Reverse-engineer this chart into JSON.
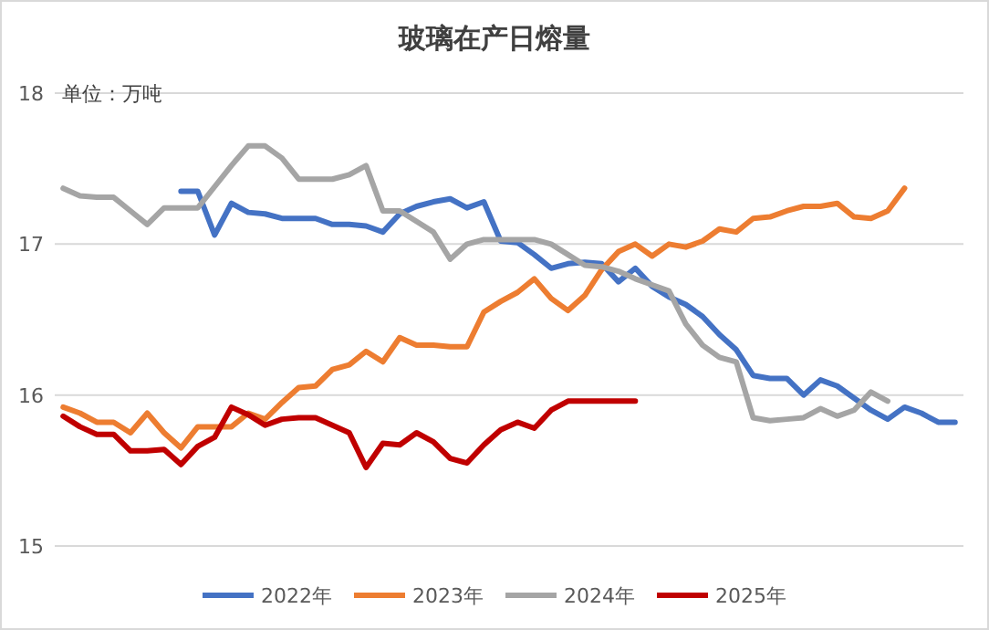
{
  "chart_data": {
    "type": "line",
    "title": "玻璃在产日熔量",
    "annotations": [
      "单位：万吨"
    ],
    "categories": [
      null,
      null,
      null,
      null,
      null,
      null,
      null,
      null,
      null,
      null,
      null,
      null,
      null,
      null,
      null,
      null,
      null,
      null,
      null,
      null,
      null,
      null,
      null,
      null,
      null,
      null,
      null,
      null,
      null,
      null,
      null,
      null,
      null,
      null,
      null,
      null,
      null,
      null,
      null,
      null,
      null,
      null,
      null,
      null,
      null,
      null,
      null,
      null,
      null,
      null,
      null,
      null,
      null,
      null
    ],
    "ylim": [
      15,
      18
    ],
    "yticks": [
      15,
      16,
      17,
      18
    ],
    "grid": "y",
    "legend": "bottom",
    "series": [
      {
        "name": "2022年",
        "color": "#4472c4",
        "values": [
          null,
          null,
          null,
          null,
          null,
          null,
          null,
          17.35,
          17.35,
          17.06,
          17.27,
          17.21,
          17.2,
          17.17,
          17.17,
          17.17,
          17.13,
          17.13,
          17.12,
          17.08,
          17.2,
          17.25,
          17.28,
          17.3,
          17.24,
          17.28,
          17.02,
          17.01,
          16.93,
          16.84,
          16.87,
          16.88,
          16.87,
          16.75,
          16.84,
          16.72,
          16.65,
          16.6,
          16.52,
          16.4,
          16.3,
          16.13,
          16.11,
          16.11,
          16.0,
          16.1,
          16.06,
          15.98,
          15.9,
          15.84,
          15.92,
          15.88,
          15.82,
          15.82
        ]
      },
      {
        "name": "2023年",
        "color": "#ed7d31",
        "values": [
          15.92,
          15.88,
          15.82,
          15.82,
          15.75,
          15.88,
          15.75,
          15.65,
          15.79,
          15.79,
          15.79,
          15.88,
          15.84,
          15.95,
          16.05,
          16.06,
          16.17,
          16.2,
          16.29,
          16.22,
          16.38,
          16.33,
          16.33,
          16.32,
          16.32,
          16.55,
          16.62,
          16.68,
          16.77,
          16.64,
          16.56,
          16.66,
          16.83,
          16.95,
          17.0,
          16.92,
          17.0,
          16.98,
          17.02,
          17.1,
          17.08,
          17.17,
          17.18,
          17.22,
          17.25,
          17.25,
          17.27,
          17.18,
          17.17,
          17.22,
          17.37,
          null,
          null,
          null
        ]
      },
      {
        "name": "2024年",
        "color": "#a5a5a5",
        "values": [
          17.37,
          17.32,
          17.31,
          17.31,
          17.22,
          17.13,
          17.24,
          17.24,
          17.24,
          17.38,
          17.52,
          17.65,
          17.65,
          17.57,
          17.43,
          17.43,
          17.43,
          17.46,
          17.52,
          17.22,
          17.22,
          17.15,
          17.08,
          16.9,
          17.0,
          17.03,
          17.03,
          17.03,
          17.03,
          17.0,
          16.93,
          16.86,
          16.85,
          16.82,
          16.77,
          16.73,
          16.69,
          16.47,
          16.33,
          16.25,
          16.22,
          15.85,
          15.83,
          15.84,
          15.85,
          15.91,
          15.86,
          15.9,
          16.02,
          15.96,
          null,
          null,
          null,
          null
        ]
      },
      {
        "name": "2025年",
        "color": "#c00000",
        "values": [
          15.86,
          15.79,
          15.74,
          15.74,
          15.63,
          15.63,
          15.64,
          15.54,
          15.66,
          15.72,
          15.92,
          15.87,
          15.8,
          15.84,
          15.85,
          15.85,
          15.8,
          15.75,
          15.52,
          15.68,
          15.67,
          15.75,
          15.69,
          15.58,
          15.55,
          15.67,
          15.77,
          15.82,
          15.78,
          15.9,
          15.96,
          15.96,
          15.96,
          15.96,
          15.96,
          null,
          null,
          null,
          null,
          null,
          null,
          null,
          null,
          null,
          null,
          null,
          null,
          null,
          null,
          null,
          null,
          null,
          null,
          null
        ]
      }
    ]
  }
}
